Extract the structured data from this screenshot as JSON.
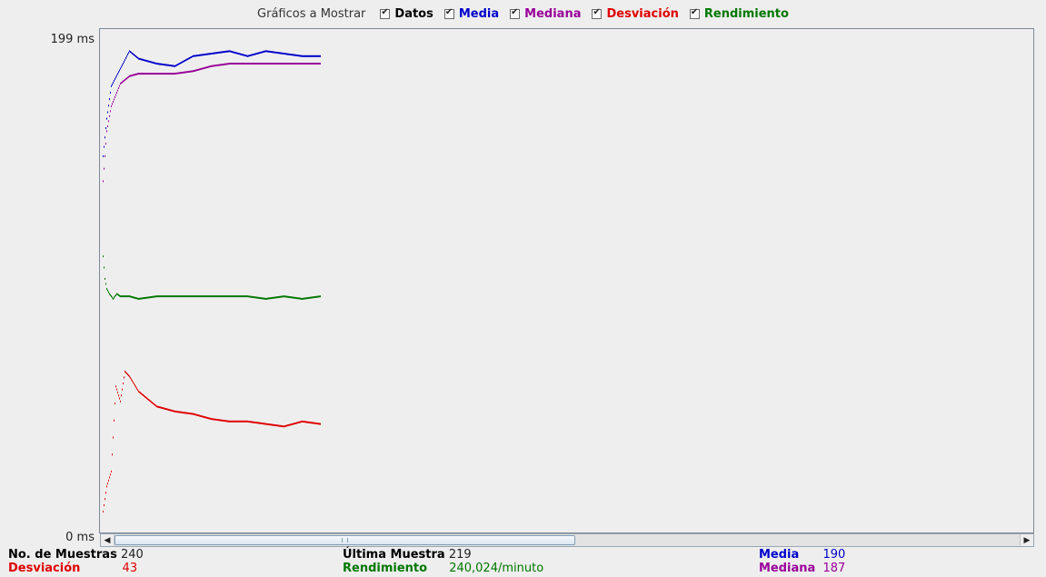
{
  "legend": {
    "label": "Gráficos a Mostrar",
    "options": [
      {
        "label": "Datos",
        "checked": true,
        "color": "#000000"
      },
      {
        "label": "Media",
        "checked": true,
        "color": "#0000cc"
      },
      {
        "label": "Mediana",
        "checked": true,
        "color": "#990099"
      },
      {
        "label": "Desviación",
        "checked": true,
        "color": "#e00000"
      },
      {
        "label": "Rendimiento",
        "checked": true,
        "color": "#007700"
      }
    ]
  },
  "axis": {
    "y_max_label": "199 ms",
    "y_min_label": "0 ms"
  },
  "stats": {
    "samples_label": "No. de Muestras",
    "samples_value": "240",
    "last_label": "Última Muestra",
    "last_value": "219",
    "mean_label": "Media",
    "mean_value": "190",
    "deviation_label": "Desviación",
    "deviation_value": "43",
    "throughput_label": "Rendimiento",
    "throughput_value": "240,024/minuto",
    "median_label": "Mediana",
    "median_value": "187"
  },
  "chart_data": {
    "type": "scatter",
    "ylim": [
      0,
      199
    ],
    "y_unit": "ms",
    "sample_count": 240,
    "series": [
      {
        "key": "media",
        "color": "#0000cc",
        "x": [
          1,
          5,
          10,
          20,
          30,
          40,
          60,
          80,
          100,
          120,
          140,
          160,
          180,
          200,
          220,
          240
        ],
        "values": [
          150,
          165,
          178,
          185,
          192,
          189,
          187,
          186,
          190,
          191,
          192,
          190,
          192,
          191,
          190,
          190
        ]
      },
      {
        "key": "mediana",
        "color": "#990099",
        "x": [
          1,
          5,
          10,
          20,
          30,
          40,
          60,
          80,
          100,
          120,
          140,
          160,
          180,
          200,
          220,
          240
        ],
        "values": [
          140,
          160,
          170,
          179,
          182,
          183,
          183,
          183,
          184,
          186,
          187,
          187,
          187,
          187,
          187,
          187
        ]
      },
      {
        "key": "desviacion",
        "color": "#e00000",
        "x": [
          1,
          5,
          10,
          15,
          20,
          25,
          30,
          40,
          60,
          80,
          100,
          120,
          140,
          160,
          180,
          200,
          220,
          240
        ],
        "values": [
          8,
          18,
          24,
          58,
          52,
          64,
          62,
          56,
          50,
          48,
          47,
          45,
          44,
          44,
          43,
          42,
          44,
          43
        ]
      },
      {
        "key": "rendimiento",
        "color": "#007700",
        "x": [
          1,
          3,
          5,
          8,
          12,
          16,
          20,
          30,
          40,
          60,
          80,
          100,
          120,
          140,
          160,
          180,
          200,
          220,
          240
        ],
        "values": [
          110,
          101,
          97,
          95,
          93,
          95,
          94,
          94,
          93,
          94,
          94,
          94,
          94,
          94,
          94,
          93,
          94,
          93,
          94
        ]
      }
    ]
  }
}
